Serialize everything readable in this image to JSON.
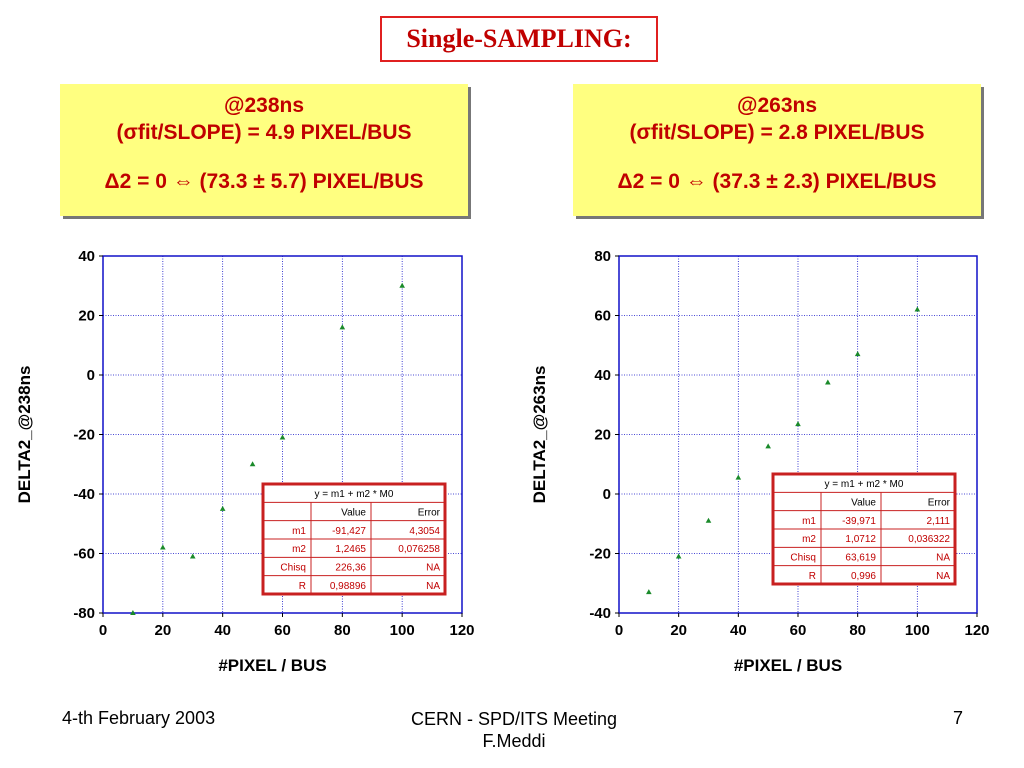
{
  "slide_title": "Single-SAMPLING:",
  "boxes": [
    {
      "line1": "@238ns",
      "line2": "(σfit/SLOPE) = 4.9 PIXEL/BUS",
      "line3": "Δ2 = 0 ⇔ (73.3 ± 5.7) PIXEL/BUS"
    },
    {
      "line1": "@263ns",
      "line2": "(σfit/SLOPE) = 2.8 PIXEL/BUS",
      "line3": "Δ2 = 0 ⇔ (37.3 ± 2.3) PIXEL/BUS"
    }
  ],
  "footer": {
    "date": "4-th February 2003",
    "center1": "CERN - SPD/ITS Meeting",
    "center2": "F.Meddi",
    "page": "7"
  },
  "colors": {
    "title": "#c00000",
    "box_bg": "#ffff80",
    "grid": "#1010c8",
    "marker": "#1a8a2a",
    "fit_border": "#c82020",
    "fit_text": "#c00000"
  },
  "chart_data": [
    {
      "type": "scatter",
      "xlabel": "#PIXEL / BUS",
      "ylabel": "DELTA2_@238ns",
      "xlim": [
        0,
        120
      ],
      "ylim": [
        -80,
        40
      ],
      "xticks": [
        "0",
        "20",
        "40",
        "60",
        "80",
        "100",
        "120"
      ],
      "yticks": [
        "-80",
        "-60",
        "-40",
        "-20",
        "0",
        "20",
        "40"
      ],
      "grid": true,
      "x": [
        10,
        20,
        30,
        40,
        50,
        60,
        80,
        100
      ],
      "y": [
        -80,
        -58,
        -61,
        -45,
        -30,
        -21,
        16,
        30
      ],
      "fit_table": {
        "equation": "y = m1 + m2 * M0",
        "header": [
          "",
          "Value",
          "Error"
        ],
        "rows": [
          [
            "m1",
            "-91,427",
            "4,3054"
          ],
          [
            "m2",
            "1,2465",
            "0,076258"
          ],
          [
            "Chisq",
            "226,36",
            "NA"
          ],
          [
            "R",
            "0,98896",
            "NA"
          ]
        ],
        "placement": "lower-right"
      }
    },
    {
      "type": "scatter",
      "xlabel": "#PIXEL / BUS",
      "ylabel": "DELTA2_@263ns",
      "xlim": [
        0,
        120
      ],
      "ylim": [
        -40,
        80
      ],
      "xticks": [
        "0",
        "20",
        "40",
        "60",
        "80",
        "100",
        "120"
      ],
      "yticks": [
        "-40",
        "-20",
        "0",
        "20",
        "40",
        "60",
        "80"
      ],
      "grid": true,
      "x": [
        10,
        20,
        30,
        40,
        50,
        60,
        70,
        80,
        100
      ],
      "y": [
        -33,
        -21,
        -9,
        5.5,
        16,
        23.5,
        37.5,
        47,
        62
      ],
      "fit_table": {
        "equation": "y = m1 + m2 * M0",
        "header": [
          "",
          "Value",
          "Error"
        ],
        "rows": [
          [
            "m1",
            "-39,971",
            "2,111"
          ],
          [
            "m2",
            "1,0712",
            "0,036322"
          ],
          [
            "Chisq",
            "63,619",
            "NA"
          ],
          [
            "R",
            "0,996",
            "NA"
          ]
        ],
        "placement": "lower-right"
      }
    }
  ]
}
